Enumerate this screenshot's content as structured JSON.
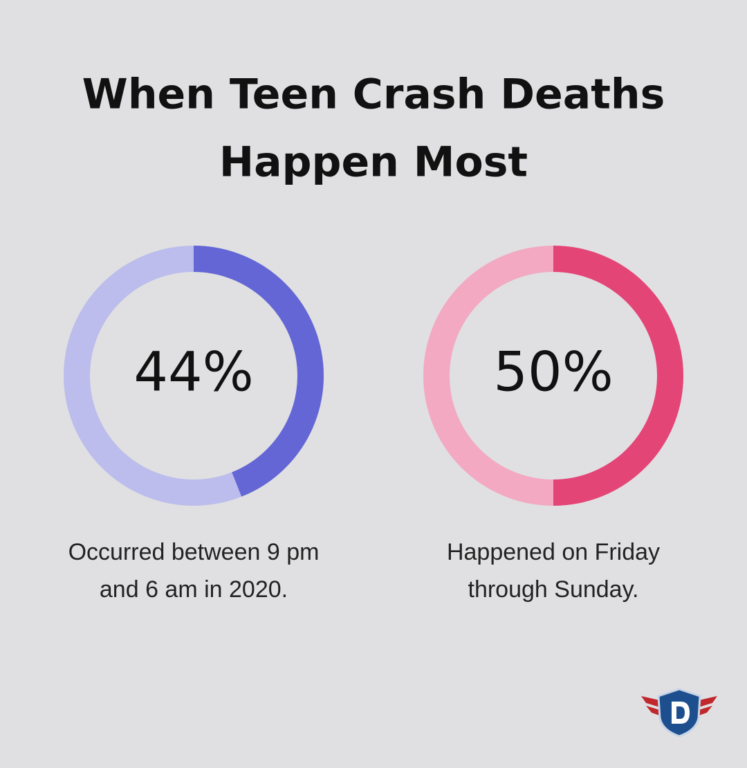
{
  "title_lines": [
    "When Teen Crash Deaths",
    "Happen Most"
  ],
  "chart_data": [
    {
      "type": "donut",
      "values": [
        44
      ],
      "value_labels": [
        "44%"
      ],
      "color": "#6366d4",
      "track_color": "#bcbdec",
      "caption_lines": [
        "Occurred between 9 pm",
        "and 6 am in 2020."
      ]
    },
    {
      "type": "donut",
      "values": [
        50
      ],
      "value_labels": [
        "50%"
      ],
      "color": "#e44577",
      "track_color": "#f2a9c1",
      "caption_lines": [
        "Happened on Friday",
        "through Sunday."
      ]
    }
  ]
}
